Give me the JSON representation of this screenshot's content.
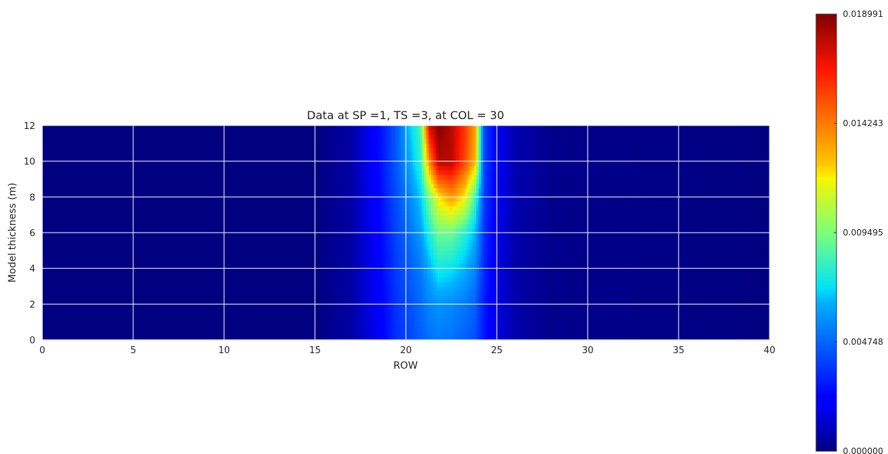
{
  "chart_data": {
    "type": "heatmap",
    "title": "Data at SP =1, TS =3, at COL = 30",
    "xlabel": "ROW",
    "ylabel": "Model thickness (m)",
    "xlim": [
      0,
      40
    ],
    "ylim": [
      0,
      12
    ],
    "xticks": [
      0,
      5,
      10,
      15,
      20,
      25,
      30,
      35,
      40
    ],
    "yticks": [
      0,
      2,
      4,
      6,
      8,
      10,
      12
    ],
    "grid": true,
    "colormap": "jet",
    "colorbar": {
      "min": 0.0,
      "max": 0.018991,
      "tick_values": [
        0.0,
        0.004748,
        0.009495,
        0.014243,
        0.018991
      ],
      "tick_labels": [
        "0.000000",
        "0.004748",
        "0.009495",
        "0.014243",
        "0.018991"
      ]
    },
    "z_profiles": [
      {
        "y": 12,
        "x": [
          0,
          15,
          17,
          18.5,
          19.5,
          20.2,
          20.8,
          21.3,
          21.8,
          22.5,
          23.2,
          23.8,
          24.3,
          25,
          26,
          28,
          40
        ],
        "value": [
          0,
          0,
          0.0006,
          0.0025,
          0.0045,
          0.0068,
          0.0085,
          0.0175,
          0.0189,
          0.018,
          0.016,
          0.0135,
          0.004,
          0.002,
          0.0008,
          0.0002,
          0
        ]
      },
      {
        "y": 10,
        "x": [
          0,
          15,
          17,
          18.5,
          19.5,
          20.2,
          20.8,
          21.3,
          21.8,
          22.5,
          23.2,
          23.8,
          24.3,
          25,
          26,
          28,
          40
        ],
        "value": [
          0,
          0,
          0.0006,
          0.0025,
          0.0045,
          0.0062,
          0.008,
          0.014,
          0.018,
          0.018,
          0.0155,
          0.013,
          0.004,
          0.002,
          0.0008,
          0.0002,
          0
        ]
      },
      {
        "y": 8,
        "x": [
          0,
          15,
          17,
          18.5,
          19.5,
          20.2,
          20.8,
          21.3,
          21.8,
          22.5,
          23.2,
          23.8,
          24.3,
          25,
          26,
          28,
          40
        ],
        "value": [
          0,
          0,
          0.0006,
          0.0024,
          0.0042,
          0.0055,
          0.0068,
          0.0095,
          0.012,
          0.0135,
          0.012,
          0.0085,
          0.0038,
          0.002,
          0.0008,
          0.0002,
          0
        ]
      },
      {
        "y": 6,
        "x": [
          0,
          15,
          17,
          18.5,
          19.5,
          20.2,
          20.8,
          21.3,
          21.8,
          22.5,
          23.2,
          23.8,
          24.3,
          25,
          26,
          28,
          40
        ],
        "value": [
          0,
          0,
          0.0006,
          0.0023,
          0.004,
          0.005,
          0.006,
          0.0078,
          0.0092,
          0.0092,
          0.008,
          0.0065,
          0.0035,
          0.0018,
          0.0007,
          0.0002,
          0
        ]
      },
      {
        "y": 4,
        "x": [
          0,
          15,
          17,
          18.5,
          19.5,
          20.2,
          20.8,
          21.3,
          21.8,
          22.5,
          23.2,
          23.8,
          24.3,
          25,
          26,
          28,
          40
        ],
        "value": [
          0,
          0,
          0.0006,
          0.0022,
          0.0038,
          0.0045,
          0.0052,
          0.0064,
          0.0075,
          0.0072,
          0.0065,
          0.0055,
          0.0033,
          0.0017,
          0.0007,
          0.0002,
          0
        ]
      },
      {
        "y": 2,
        "x": [
          0,
          15,
          17,
          18.5,
          19.5,
          20.2,
          20.8,
          21.3,
          21.8,
          22.5,
          23.2,
          23.8,
          24.3,
          25,
          26,
          28,
          40
        ],
        "value": [
          0,
          0,
          0.0006,
          0.0021,
          0.0036,
          0.0042,
          0.0048,
          0.0055,
          0.0058,
          0.0056,
          0.0052,
          0.0046,
          0.003,
          0.0016,
          0.0007,
          0.0002,
          0
        ]
      },
      {
        "y": 0,
        "x": [
          0,
          15,
          17,
          18.5,
          19.5,
          20.2,
          20.8,
          21.3,
          21.8,
          22.5,
          23.2,
          23.8,
          24.3,
          25,
          26,
          28,
          40
        ],
        "value": [
          0,
          0,
          0.0006,
          0.002,
          0.0035,
          0.004,
          0.0045,
          0.005,
          0.0052,
          0.005,
          0.0046,
          0.0042,
          0.0028,
          0.0015,
          0.0007,
          0.0002,
          0
        ]
      }
    ]
  }
}
